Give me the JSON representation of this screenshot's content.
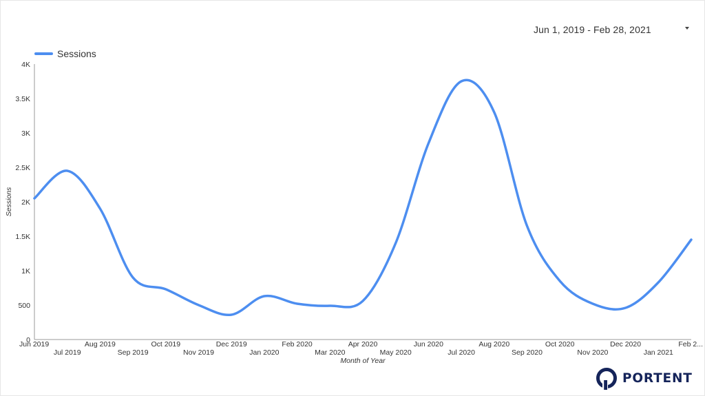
{
  "date_range": {
    "label": "Jun 1, 2019 - Feb 28, 2021",
    "icon": "dropdown-caret-icon"
  },
  "logo": {
    "text": "PORTENT",
    "color": "#15245a"
  },
  "colors": {
    "series": "#4d8ef0",
    "axis": "#999999",
    "text": "#333333"
  },
  "chart_data": {
    "type": "line",
    "xlabel": "Month of Year",
    "ylabel": "Sessions",
    "ylim": [
      0,
      4000
    ],
    "yticks": [
      0,
      500,
      1000,
      1500,
      2000,
      2500,
      3000,
      3500,
      4000
    ],
    "ytick_labels": [
      "0",
      "500",
      "1K",
      "1.5K",
      "2K",
      "2.5K",
      "3K",
      "3.5K",
      "4K"
    ],
    "legend_position": "top-left",
    "grid": false,
    "categories": [
      "Jun 2019",
      "Jul 2019",
      "Aug 2019",
      "Sep 2019",
      "Oct 2019",
      "Nov 2019",
      "Dec 2019",
      "Jan 2020",
      "Feb 2020",
      "Mar 2020",
      "Apr 2020",
      "May 2020",
      "Jun 2020",
      "Jul 2020",
      "Aug 2020",
      "Sep 2020",
      "Oct 2020",
      "Nov 2020",
      "Dec 2020",
      "Jan 2021",
      "Feb 2..."
    ],
    "series": [
      {
        "name": "Sessions",
        "values": [
          2050,
          2450,
          1900,
          900,
          730,
          500,
          360,
          630,
          520,
          490,
          560,
          1400,
          2850,
          3750,
          3300,
          1650,
          850,
          520,
          460,
          830,
          1450
        ]
      }
    ]
  }
}
